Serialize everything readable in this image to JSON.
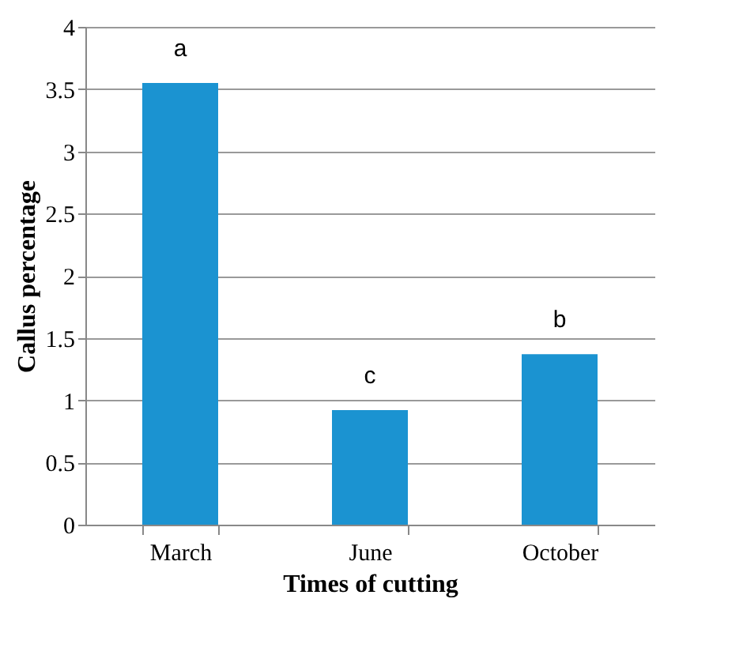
{
  "chart_data": {
    "type": "bar",
    "xlabel": "Times of cutting",
    "ylabel": "Callus percentage",
    "categories": [
      "March",
      "June",
      "October"
    ],
    "values": [
      3.55,
      0.92,
      1.37
    ],
    "color": "#1b93d1",
    "ylim": [
      0,
      4
    ],
    "yticks": [
      0,
      0.5,
      1,
      1.5,
      2,
      2.5,
      3,
      3.5,
      4
    ],
    "grid": "y",
    "annotations": [
      "a",
      "c",
      "b"
    ]
  }
}
